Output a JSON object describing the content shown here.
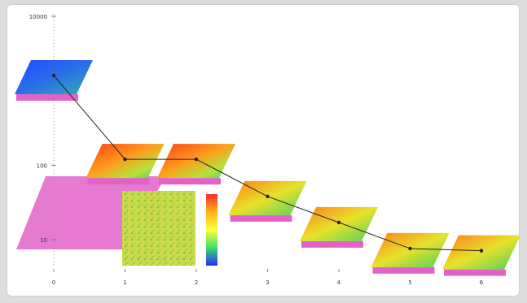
{
  "chart_data": {
    "type": "line",
    "y_scale": "log",
    "ylim": [
      10,
      10000
    ],
    "y_ticks": [
      {
        "value": 10000,
        "label": "10000"
      },
      {
        "value": 100,
        "label": "100"
      },
      {
        "value": 10,
        "label": "10"
      }
    ],
    "x_ticks": [
      "0",
      "1",
      "2",
      "3",
      "4",
      "5",
      "6"
    ],
    "series": [
      {
        "values": [
          {
            "x": 0,
            "y": 1600
          },
          {
            "x": 1,
            "y": 120
          },
          {
            "x": 2,
            "y": 120
          },
          {
            "x": 3,
            "y": 38
          },
          {
            "x": 4,
            "y": 17
          },
          {
            "x": 5,
            "y": 7.6
          },
          {
            "x": 6,
            "y": 7.1
          }
        ]
      }
    ],
    "thumbnails": [
      {
        "x": 0,
        "palette": "blue",
        "description": "rendered tile, mostly blue"
      },
      {
        "x": 1,
        "palette": "rainbow-hot",
        "description": "rendered tile, orange-red core"
      },
      {
        "x": 2,
        "palette": "rainbow-hot",
        "description": "rendered tile, orange-green"
      },
      {
        "x": 3,
        "palette": "rainbow",
        "description": "rendered tile, orange-green"
      },
      {
        "x": 4,
        "palette": "rainbow",
        "description": "rendered tile, yellow-green"
      },
      {
        "x": 5,
        "palette": "rainbow",
        "description": "rendered tile, yellow-green"
      },
      {
        "x": 6,
        "palette": "rainbow",
        "description": "rendered tile, green"
      }
    ],
    "grid": false,
    "colors": {
      "line": "#222222",
      "substrate": "#e262c8",
      "colorbar_top": "#ff2a2a",
      "colorbar_bottom": "#2a2aff"
    }
  }
}
